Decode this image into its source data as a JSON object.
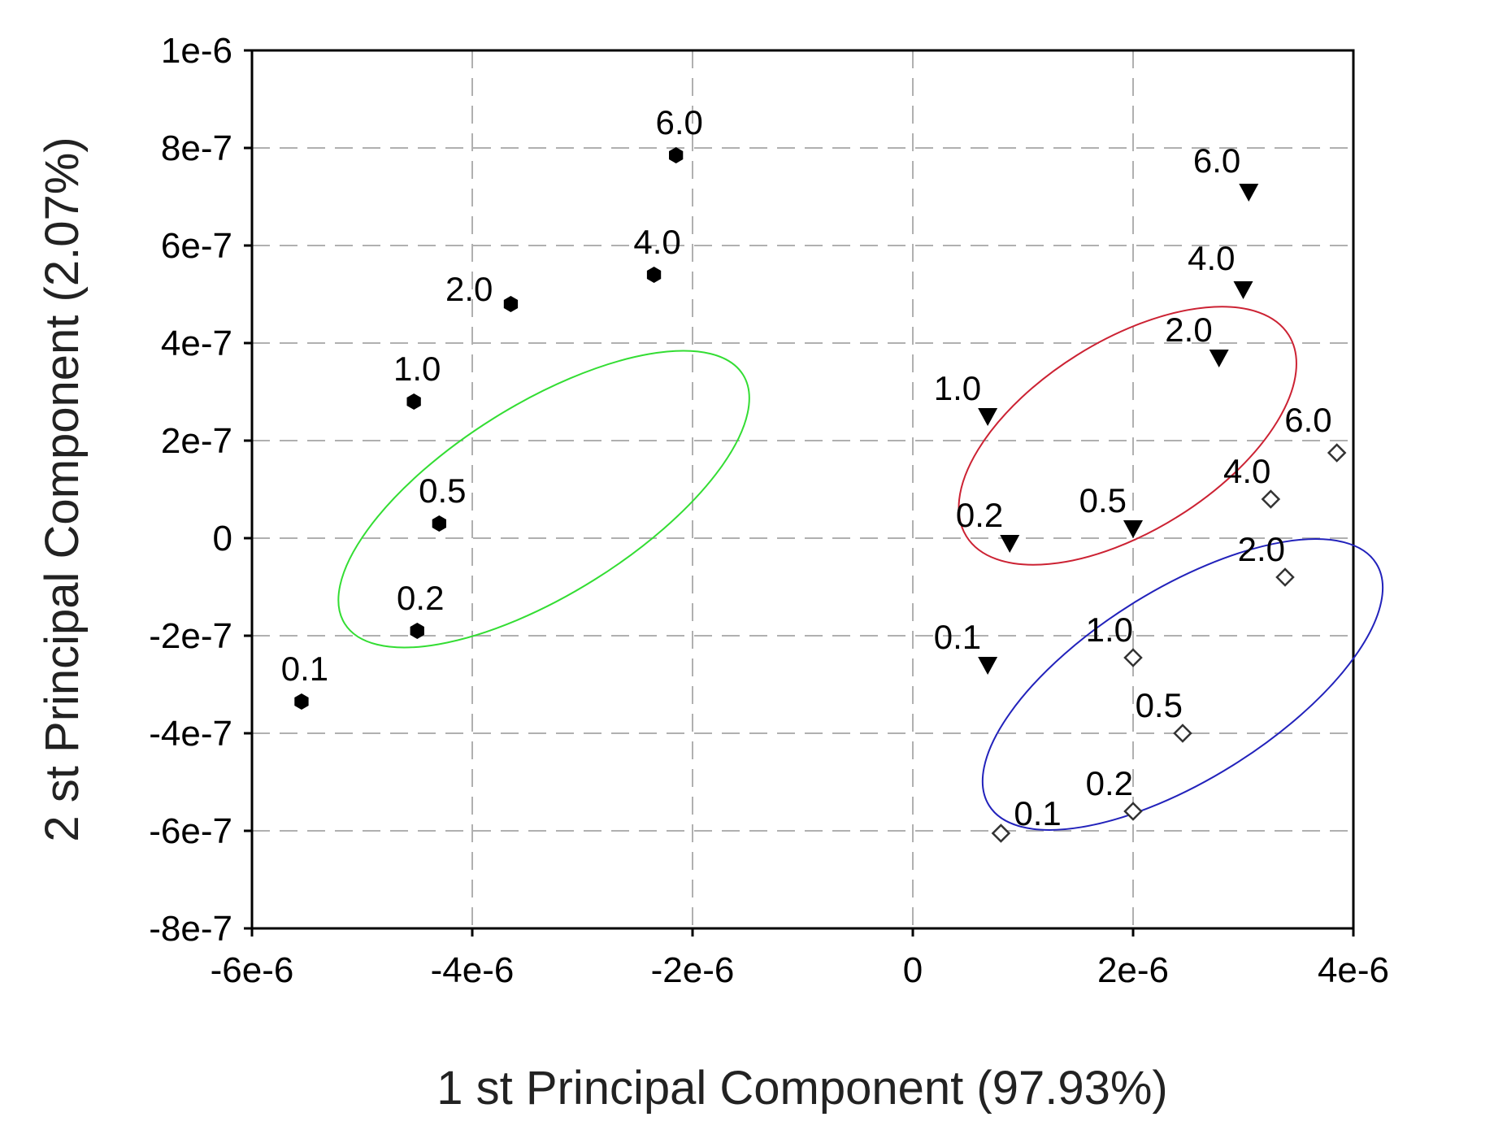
{
  "chart_data": {
    "type": "scatter",
    "title": "",
    "xlabel": "1 st Principal Component (97.93%)",
    "ylabel": "2 st Principal Component (2.07%)",
    "xlim": [
      -6e-06,
      4e-06
    ],
    "ylim": [
      -8e-07,
      1e-06
    ],
    "grid": true,
    "grid_style": "dashed",
    "x_ticks": [
      {
        "value": -6e-06,
        "label": "-6e-6"
      },
      {
        "value": -4e-06,
        "label": "-4e-6"
      },
      {
        "value": -2e-06,
        "label": "-2e-6"
      },
      {
        "value": 0,
        "label": "0"
      },
      {
        "value": 2e-06,
        "label": "2e-6"
      },
      {
        "value": 4e-06,
        "label": "4e-6"
      }
    ],
    "y_ticks": [
      {
        "value": 1e-06,
        "label": "1e-6"
      },
      {
        "value": 8e-07,
        "label": "8e-7"
      },
      {
        "value": 6e-07,
        "label": "6e-7"
      },
      {
        "value": 4e-07,
        "label": "4e-7"
      },
      {
        "value": 2e-07,
        "label": "2e-7"
      },
      {
        "value": 0,
        "label": "0"
      },
      {
        "value": -2e-07,
        "label": "-2e-7"
      },
      {
        "value": -4e-07,
        "label": "-4e-7"
      },
      {
        "value": -6e-07,
        "label": "-6e-7"
      },
      {
        "value": -8e-07,
        "label": "-8e-7"
      }
    ],
    "series": [
      {
        "marker": "filled-hexagon",
        "color": "#000000",
        "points": [
          {
            "x": -5.55e-06,
            "y": -3.35e-07,
            "label": "0.1"
          },
          {
            "x": -4.5e-06,
            "y": -1.9e-07,
            "label": "0.2"
          },
          {
            "x": -4.3e-06,
            "y": 3e-08,
            "label": "0.5"
          },
          {
            "x": -4.53e-06,
            "y": 2.8e-07,
            "label": "1.0"
          },
          {
            "x": -3.65e-06,
            "y": 4.8e-07,
            "label": "2.0"
          },
          {
            "x": -2.35e-06,
            "y": 5.4e-07,
            "label": "4.0"
          },
          {
            "x": -2.15e-06,
            "y": 7.85e-07,
            "label": "6.0"
          }
        ]
      },
      {
        "marker": "filled-triangle-down",
        "color": "#000000",
        "points": [
          {
            "x": 6.8e-07,
            "y": -2.6e-07,
            "label": "0.1"
          },
          {
            "x": 8.8e-07,
            "y": -1e-08,
            "label": "0.2"
          },
          {
            "x": 2e-06,
            "y": 2e-08,
            "label": "0.5"
          },
          {
            "x": 6.8e-07,
            "y": 2.5e-07,
            "label": "1.0"
          },
          {
            "x": 2.78e-06,
            "y": 3.7e-07,
            "label": "2.0"
          },
          {
            "x": 3e-06,
            "y": 5.1e-07,
            "label": "4.0"
          },
          {
            "x": 3.05e-06,
            "y": 7.1e-07,
            "label": "6.0"
          }
        ]
      },
      {
        "marker": "open-diamond",
        "color": "#333333",
        "points": [
          {
            "x": 8e-07,
            "y": -6.05e-07,
            "label": "0.1"
          },
          {
            "x": 2e-06,
            "y": -5.6e-07,
            "label": "0.2"
          },
          {
            "x": 2.45e-06,
            "y": -4e-07,
            "label": "0.5"
          },
          {
            "x": 2e-06,
            "y": -2.45e-07,
            "label": "1.0"
          },
          {
            "x": 3.38e-06,
            "y": -8e-08,
            "label": "2.0"
          },
          {
            "x": 3.25e-06,
            "y": 8e-08,
            "label": "4.0"
          },
          {
            "x": 3.85e-06,
            "y": 1.75e-07,
            "label": "6.0"
          }
        ]
      }
    ],
    "ellipses": [
      {
        "color": "#33dd33",
        "center": [
          -3.35e-06,
          8e-08
        ],
        "semi_axis_x": 1.2e-06,
        "semi_axis_y": 5.9e-07,
        "tilt": "positive"
      },
      {
        "color": "#cc2233",
        "center": [
          1.95e-06,
          2.1e-07
        ],
        "semi_axis_x": 1.2e-06,
        "semi_axis_y": 4.5e-07,
        "tilt": "positive"
      },
      {
        "color": "#2222bb",
        "center": [
          2.45e-06,
          -3e-07
        ],
        "semi_axis_x": 1.2e-06,
        "semi_axis_y": 5.7e-07,
        "tilt": "positive"
      }
    ]
  }
}
